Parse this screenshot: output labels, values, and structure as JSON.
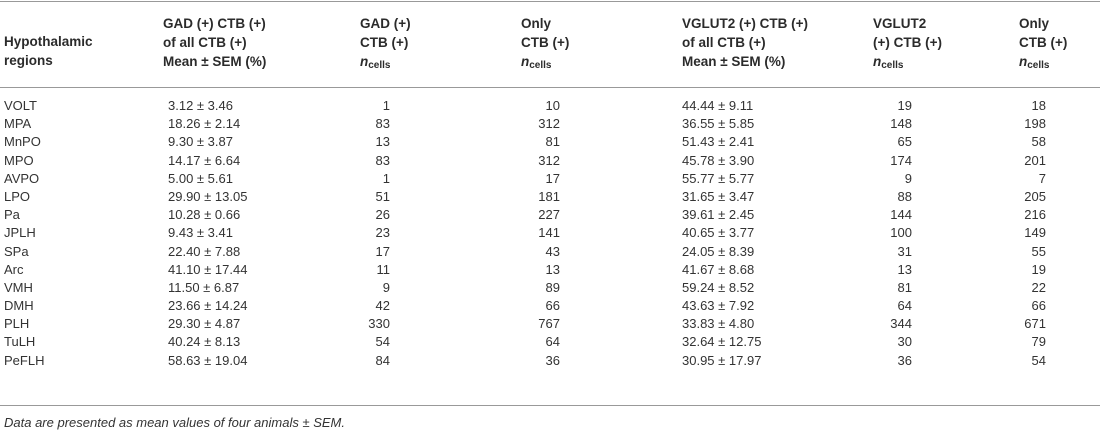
{
  "table": {
    "headers": [
      [
        "Hypothalamic",
        "regions"
      ],
      [
        "GAD (+) CTB (+)",
        "of all CTB (+)",
        "Mean ± SEM (%)"
      ],
      [
        "GAD (+)",
        "CTB (+)"
      ],
      [
        "Only",
        "CTB (+)"
      ],
      [
        "VGLUT2 (+) CTB (+)",
        "of all CTB (+)",
        "Mean ± SEM (%)"
      ],
      [
        "VGLUT2",
        "(+) CTB (+)"
      ],
      [
        "Only",
        "CTB (+)"
      ]
    ],
    "n_label": "n",
    "n_sub": "cells",
    "rows": [
      [
        "VOLT",
        "3.12 ± 3.46",
        "1",
        "10",
        "44.44 ± 9.11",
        "19",
        "18"
      ],
      [
        "MPA",
        "18.26 ± 2.14",
        "83",
        "312",
        "36.55 ± 5.85",
        "148",
        "198"
      ],
      [
        "MnPO",
        "9.30 ± 3.87",
        "13",
        "81",
        "51.43 ± 2.41",
        "65",
        "58"
      ],
      [
        "MPO",
        "14.17 ± 6.64",
        "83",
        "312",
        "45.78 ± 3.90",
        "174",
        "201"
      ],
      [
        "AVPO",
        "5.00 ± 5.61",
        "1",
        "17",
        "55.77 ± 5.77",
        "9",
        "7"
      ],
      [
        "LPO",
        "29.90 ± 13.05",
        "51",
        "181",
        "31.65 ± 3.47",
        "88",
        "205"
      ],
      [
        "Pa",
        "10.28 ± 0.66",
        "26",
        "227",
        "39.61 ± 2.45",
        "144",
        "216"
      ],
      [
        "JPLH",
        "9.43 ± 3.41",
        "23",
        "141",
        "40.65 ± 3.77",
        "100",
        "149"
      ],
      [
        "SPa",
        "22.40 ± 7.88",
        "17",
        "43",
        "24.05 ± 8.39",
        "31",
        "55"
      ],
      [
        "Arc",
        "41.10 ± 17.44",
        "11",
        "13",
        "41.67 ± 8.68",
        "13",
        "19"
      ],
      [
        "VMH",
        "11.50 ± 6.87",
        "9",
        "89",
        "59.24 ± 8.52",
        "81",
        "22"
      ],
      [
        "DMH",
        "23.66 ± 14.24",
        "42",
        "66",
        "43.63 ± 7.92",
        "64",
        "66"
      ],
      [
        "PLH",
        "29.30 ± 4.87",
        "330",
        "767",
        "33.83 ± 4.80",
        "344",
        "671"
      ],
      [
        "TuLH",
        "40.24 ± 8.13",
        "54",
        "64",
        "32.64 ± 12.75",
        "30",
        "79"
      ],
      [
        "PeFLH",
        "58.63 ± 19.04",
        "84",
        "36",
        "30.95 ± 17.97",
        "36",
        "54"
      ]
    ],
    "footnote": "Data are presented as mean values of four animals ± SEM."
  }
}
